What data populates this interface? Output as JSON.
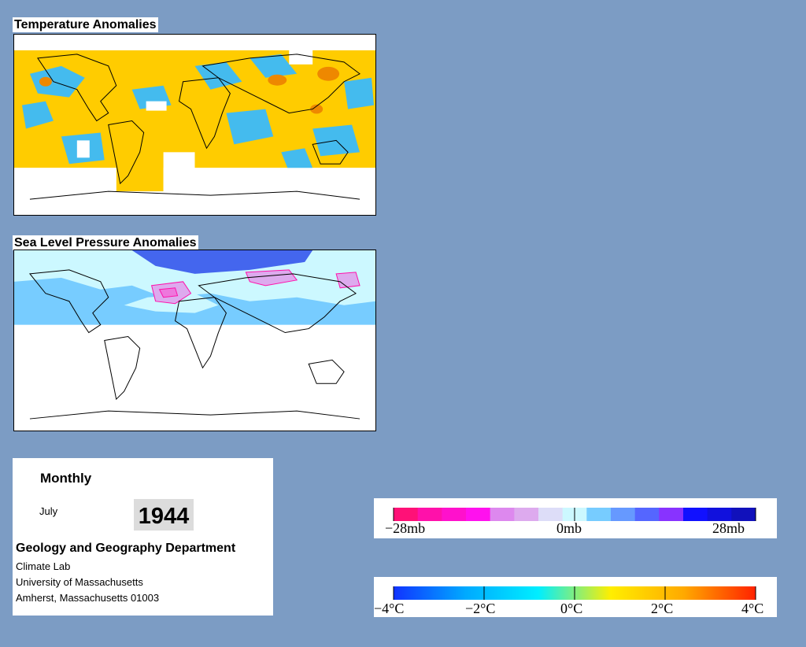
{
  "panels": {
    "temperature": {
      "title": "Temperature Anomalies"
    },
    "pressure": {
      "title": "Sea Level Pressure Anomalies"
    }
  },
  "info": {
    "frequency": "Monthly",
    "month": "July",
    "year": "1944",
    "department": "Geology and Geography Department",
    "lines": [
      "Climate Lab",
      "University of Massachusetts",
      "Amherst, Massachusetts 01003"
    ]
  },
  "pressure_legend": {
    "min_label": "−28mb",
    "mid_label": "0mb",
    "max_label": "28mb",
    "colors": [
      "#ff1177",
      "#ff11aa",
      "#ff11cc",
      "#ff11ee",
      "#dd88ee",
      "#ddaaee",
      "#ddddf8",
      "#ccf8ff",
      "#77ccff",
      "#6699ff",
      "#5566ff",
      "#8833ff",
      "#1111ff",
      "#1111dd",
      "#1111bb"
    ]
  },
  "temp_legend": {
    "labels": [
      "−4°C",
      "−2°C",
      "0°C",
      "2°C",
      "4°C"
    ],
    "gradient": [
      "#1133ff",
      "#00aaff",
      "#00eeff",
      "#ffee00",
      "#ffaa00",
      "#ff2200"
    ]
  },
  "colors": {
    "background": "#7c9cc4",
    "warm": "#ffcc00",
    "cool": "#33bbee",
    "pressure_low": "#ccf8ff",
    "pressure_high": "#4466ee"
  }
}
